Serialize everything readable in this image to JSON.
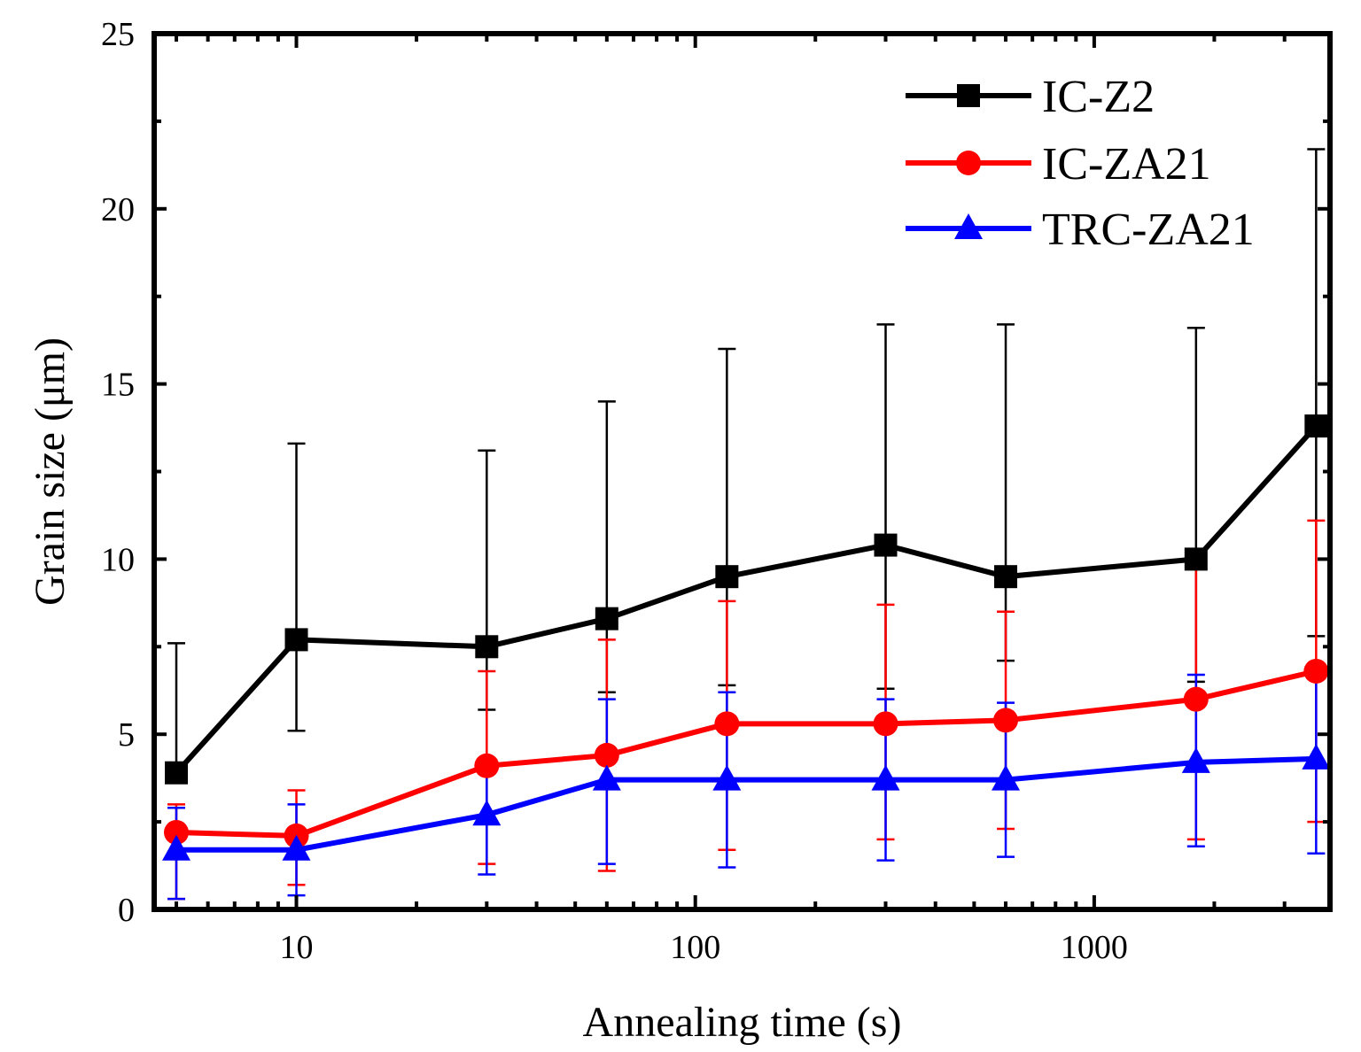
{
  "chart_data": {
    "type": "line",
    "title": "",
    "xlabel": "Annealing time (s)",
    "ylabel": "Grain size (μm)",
    "xscale": "log",
    "xlim": [
      4.4,
      3900
    ],
    "ylim": [
      0,
      25
    ],
    "x_ticks": [
      {
        "value": 10,
        "label": "10"
      },
      {
        "value": 100,
        "label": "100"
      },
      {
        "value": 1000,
        "label": "1000"
      }
    ],
    "y_ticks": [
      {
        "value": 0,
        "label": "0"
      },
      {
        "value": 5,
        "label": "5"
      },
      {
        "value": 10,
        "label": "10"
      },
      {
        "value": 15,
        "label": "15"
      },
      {
        "value": 20,
        "label": "20"
      },
      {
        "value": 25,
        "label": "25"
      }
    ],
    "grid": false,
    "legend_position": "top-right",
    "x": [
      5,
      10,
      30,
      60,
      120,
      300,
      600,
      1800,
      3600
    ],
    "series": [
      {
        "name": "IC-Z2",
        "color": "#000000",
        "marker": "square",
        "values": [
          3.9,
          7.7,
          7.5,
          8.3,
          9.5,
          10.4,
          9.5,
          10.0,
          13.8
        ],
        "err_low": [
          3.7,
          5.1,
          5.7,
          6.2,
          6.4,
          6.3,
          7.1,
          6.5,
          7.8
        ],
        "err_high": [
          7.6,
          13.3,
          13.1,
          14.5,
          16.0,
          16.7,
          16.7,
          16.6,
          21.7
        ]
      },
      {
        "name": "IC-ZA21",
        "color": "#ff0000",
        "marker": "circle",
        "values": [
          2.2,
          2.1,
          4.1,
          4.4,
          5.3,
          5.3,
          5.4,
          6.0,
          6.8
        ],
        "err_low": [
          0.3,
          0.7,
          1.3,
          1.1,
          1.7,
          2.0,
          2.3,
          2.0,
          2.5
        ],
        "err_high": [
          3.0,
          3.4,
          6.8,
          7.7,
          8.8,
          8.7,
          8.5,
          9.9,
          11.1
        ]
      },
      {
        "name": "TRC-ZA21",
        "color": "#0000ff",
        "marker": "triangle",
        "values": [
          1.7,
          1.7,
          2.7,
          3.7,
          3.7,
          3.7,
          3.7,
          4.2,
          4.3
        ],
        "err_low": [
          0.3,
          0.4,
          1.0,
          1.3,
          1.2,
          1.4,
          1.5,
          1.8,
          1.6
        ],
        "err_high": [
          2.9,
          3.0,
          4.3,
          6.0,
          6.2,
          6.0,
          5.9,
          6.7,
          7.0
        ]
      }
    ]
  }
}
